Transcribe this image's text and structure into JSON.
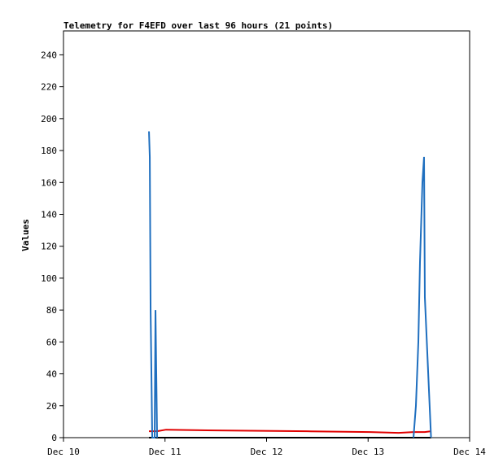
{
  "chart_data": {
    "type": "line",
    "title": "Telemetry for F4EFD over last 96 hours (21 points)",
    "y_label": "Values",
    "x": [
      10.842,
      10.85,
      10.858,
      10.874,
      10.898,
      10.906,
      10.914,
      10.922,
      11.01,
      11.51,
      12.4,
      13.02,
      13.3,
      13.447,
      13.471,
      13.495,
      13.511,
      13.535,
      13.551,
      13.559,
      13.62
    ],
    "series": [
      {
        "color": "#000000",
        "values": [
          0,
          0,
          0,
          0,
          0,
          0,
          0,
          0,
          0,
          0,
          0,
          0,
          0,
          0,
          0,
          0,
          0,
          0,
          0,
          0,
          0
        ]
      },
      {
        "color": "#e00000",
        "values": [
          4,
          4,
          4,
          4,
          4,
          4,
          4,
          4,
          5,
          4.5,
          4,
          3.5,
          3,
          3.5,
          3.5,
          3.5,
          3.5,
          3.5,
          3.5,
          3.5,
          4
        ]
      },
      {
        "color": "#1f6fbf",
        "values": [
          192,
          176,
          80,
          0,
          0,
          80,
          40,
          0,
          null,
          null,
          null,
          null,
          null,
          0,
          20,
          60,
          110,
          160,
          176,
          88,
          0
        ]
      }
    ],
    "xlim": [
      10,
      14
    ],
    "xticks": [
      {
        "value": 10,
        "label": "Dec 10"
      },
      {
        "value": 11,
        "label": "Dec 11"
      },
      {
        "value": 12,
        "label": "Dec 12"
      },
      {
        "value": 13,
        "label": "Dec 13"
      },
      {
        "value": 14,
        "label": "Dec 14"
      }
    ],
    "ylim": [
      0,
      255
    ],
    "yticks": [
      0,
      20,
      40,
      60,
      80,
      100,
      120,
      140,
      160,
      180,
      200,
      220,
      240
    ]
  }
}
